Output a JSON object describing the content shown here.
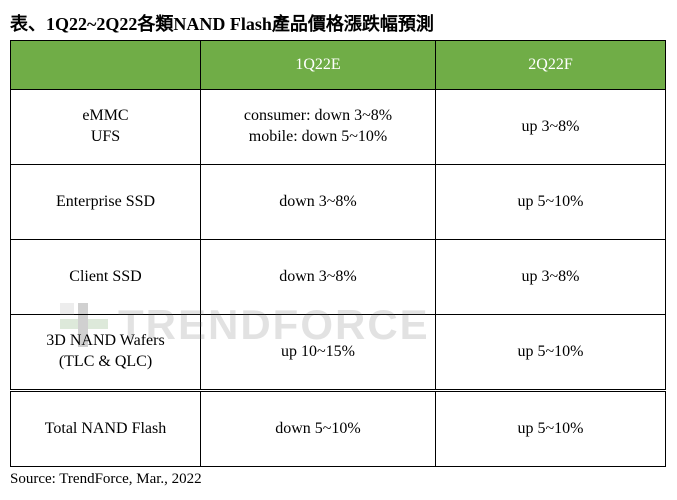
{
  "title": "表、1Q22~2Q22各類NAND Flash產品價格漲跌幅預測",
  "headers": [
    "",
    "1Q22E",
    "2Q22F"
  ],
  "rows": [
    {
      "label_line1": "eMMC",
      "label_line2": "UFS",
      "c1_line1": "consumer: down 3~8%",
      "c1_line2": "mobile: down 5~10%",
      "c2": "up 3~8%"
    },
    {
      "label": "Enterprise SSD",
      "c1": "down 3~8%",
      "c2": "up 5~10%"
    },
    {
      "label": "Client SSD",
      "c1": "down 3~8%",
      "c2": "up 3~8%"
    },
    {
      "label_line1": "3D NAND Wafers",
      "label_line2": "(TLC & QLC)",
      "c1": "up 10~15%",
      "c2": "up 5~10%"
    },
    {
      "label": "Total NAND Flash",
      "c1": "down 5~10%",
      "c2": "up 5~10%"
    }
  ],
  "source": "Source: TrendForce, Mar., 2022",
  "watermark": "TRENDFORCE",
  "colors": {
    "header_bg": "#70ad47",
    "header_text": "#ffffff",
    "border": "#000000",
    "background": "#ffffff"
  }
}
